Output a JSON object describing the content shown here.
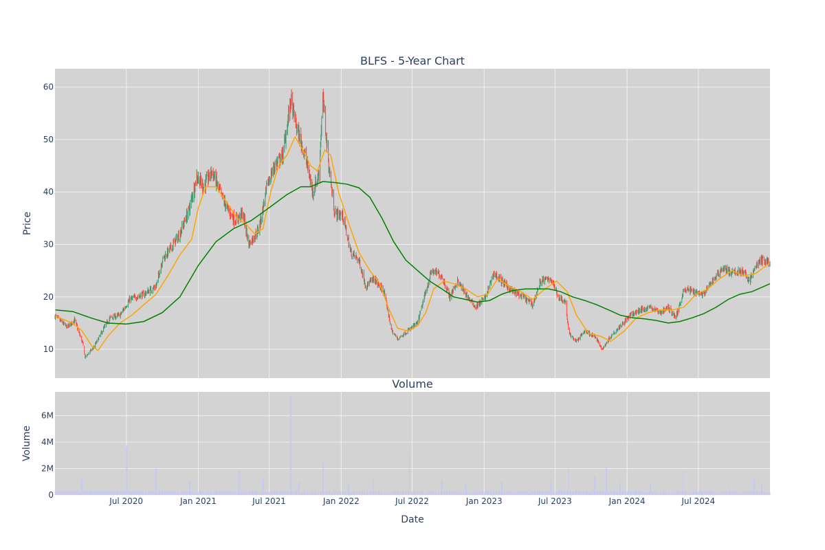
{
  "colors": {
    "plot_bg": "#d3d3d3",
    "grid": "#f0f0f0",
    "increasing": "#3d9970",
    "decreasing": "#ff4136",
    "ma_short": "#ffa500",
    "ma_long": "#008000",
    "volume": "#c8c8f0",
    "text": "#2a3f5f"
  },
  "chart_data": [
    {
      "type": "candlestick",
      "title": "BLFS - 5-Year Chart",
      "xlabel": "",
      "ylabel": "Price",
      "xlim": [
        "2020-01-01",
        "2024-12-31"
      ],
      "ylim": [
        4.5,
        63.5
      ],
      "grid": true,
      "yticks": [
        10,
        20,
        30,
        40,
        50,
        60
      ],
      "xgrid_dates": [
        "2020-07-01",
        "2021-01-01",
        "2021-07-01",
        "2022-01-01",
        "2022-07-01",
        "2023-01-01",
        "2023-07-01",
        "2024-01-01",
        "2024-07-01"
      ],
      "close_path": [
        [
          "2020-01-02",
          16.3
        ],
        [
          "2020-02-01",
          14.2
        ],
        [
          "2020-02-20",
          15.6
        ],
        [
          "2020-03-12",
          11.0
        ],
        [
          "2020-03-18",
          8.5
        ],
        [
          "2020-04-10",
          10.5
        ],
        [
          "2020-05-01",
          13.5
        ],
        [
          "2020-05-20",
          16.0
        ],
        [
          "2020-06-15",
          16.5
        ],
        [
          "2020-07-10",
          19.5
        ],
        [
          "2020-08-15",
          20.5
        ],
        [
          "2020-09-15",
          22.0
        ],
        [
          "2020-10-01",
          27.0
        ],
        [
          "2020-10-20",
          29.0
        ],
        [
          "2020-11-15",
          32.0
        ],
        [
          "2020-12-10",
          37.0
        ],
        [
          "2020-12-28",
          43.0
        ],
        [
          "2021-01-15",
          41.0
        ],
        [
          "2021-02-05",
          44.0
        ],
        [
          "2021-02-25",
          40.0
        ],
        [
          "2021-03-15",
          37.0
        ],
        [
          "2021-04-05",
          34.5
        ],
        [
          "2021-04-25",
          36.0
        ],
        [
          "2021-05-10",
          30.0
        ],
        [
          "2021-06-05",
          33.0
        ],
        [
          "2021-06-25",
          41.0
        ],
        [
          "2021-07-15",
          45.0
        ],
        [
          "2021-08-05",
          47.0
        ],
        [
          "2021-08-25",
          57.5
        ],
        [
          "2021-09-10",
          52.0
        ],
        [
          "2021-10-01",
          47.0
        ],
        [
          "2021-10-20",
          40.0
        ],
        [
          "2021-11-05",
          43.5
        ],
        [
          "2021-11-15",
          58.0
        ],
        [
          "2021-11-30",
          45.0
        ],
        [
          "2021-12-15",
          36.0
        ],
        [
          "2022-01-05",
          35.5
        ],
        [
          "2022-01-25",
          28.5
        ],
        [
          "2022-02-15",
          27.0
        ],
        [
          "2022-03-05",
          22.0
        ],
        [
          "2022-03-25",
          23.5
        ],
        [
          "2022-04-20",
          21.0
        ],
        [
          "2022-05-10",
          13.5
        ],
        [
          "2022-05-25",
          12.0
        ],
        [
          "2022-06-20",
          13.5
        ],
        [
          "2022-07-15",
          15.0
        ],
        [
          "2022-08-05",
          21.0
        ],
        [
          "2022-08-20",
          25.0
        ],
        [
          "2022-09-15",
          24.0
        ],
        [
          "2022-10-05",
          20.0
        ],
        [
          "2022-10-25",
          23.0
        ],
        [
          "2022-11-15",
          20.5
        ],
        [
          "2022-12-10",
          18.0
        ],
        [
          "2023-01-05",
          20.0
        ],
        [
          "2023-01-25",
          24.5
        ],
        [
          "2023-02-15",
          23.0
        ],
        [
          "2023-03-15",
          21.0
        ],
        [
          "2023-04-10",
          20.0
        ],
        [
          "2023-05-05",
          18.5
        ],
        [
          "2023-05-25",
          23.0
        ],
        [
          "2023-06-20",
          23.5
        ],
        [
          "2023-07-10",
          20.0
        ],
        [
          "2023-07-28",
          19.0
        ],
        [
          "2023-08-05",
          13.0
        ],
        [
          "2023-08-25",
          11.5
        ],
        [
          "2023-09-15",
          13.5
        ],
        [
          "2023-10-10",
          12.5
        ],
        [
          "2023-10-30",
          10.0
        ],
        [
          "2023-11-20",
          12.5
        ],
        [
          "2023-12-15",
          14.5
        ],
        [
          "2024-01-10",
          16.5
        ],
        [
          "2024-02-05",
          17.5
        ],
        [
          "2024-03-01",
          18.0
        ],
        [
          "2024-03-25",
          17.0
        ],
        [
          "2024-04-15",
          18.0
        ],
        [
          "2024-05-05",
          16.0
        ],
        [
          "2024-05-25",
          21.5
        ],
        [
          "2024-06-20",
          21.0
        ],
        [
          "2024-07-15",
          20.5
        ],
        [
          "2024-08-10",
          23.5
        ],
        [
          "2024-09-01",
          25.5
        ],
        [
          "2024-09-25",
          24.5
        ],
        [
          "2024-10-20",
          25.0
        ],
        [
          "2024-11-10",
          23.0
        ],
        [
          "2024-11-25",
          26.0
        ],
        [
          "2024-12-10",
          27.0
        ],
        [
          "2024-12-31",
          26.5
        ]
      ],
      "series": [
        {
          "type": "line",
          "color": "#ffa500",
          "points": [
            [
              "2020-01-02",
              16.3
            ],
            [
              "2020-02-15",
              15.0
            ],
            [
              "2020-03-10",
              13.5
            ],
            [
              "2020-04-05",
              10.5
            ],
            [
              "2020-04-20",
              9.8
            ],
            [
              "2020-05-15",
              12.5
            ],
            [
              "2020-06-15",
              15.0
            ],
            [
              "2020-07-15",
              16.5
            ],
            [
              "2020-08-15",
              18.5
            ],
            [
              "2020-09-15",
              20.5
            ],
            [
              "2020-10-15",
              24.0
            ],
            [
              "2020-11-15",
              28.0
            ],
            [
              "2020-12-15",
              31.0
            ],
            [
              "2021-01-01",
              37.0
            ],
            [
              "2021-01-20",
              41.0
            ],
            [
              "2021-02-15",
              41.0
            ],
            [
              "2021-03-15",
              38.0
            ],
            [
              "2021-04-10",
              35.0
            ],
            [
              "2021-05-01",
              34.0
            ],
            [
              "2021-05-25",
              32.0
            ],
            [
              "2021-06-15",
              33.0
            ],
            [
              "2021-07-05",
              40.0
            ],
            [
              "2021-07-25",
              45.0
            ],
            [
              "2021-08-15",
              47.0
            ],
            [
              "2021-09-05",
              50.5
            ],
            [
              "2021-09-25",
              48.0
            ],
            [
              "2021-10-15",
              45.0
            ],
            [
              "2021-11-01",
              44.0
            ],
            [
              "2021-11-20",
              48.0
            ],
            [
              "2021-12-05",
              47.0
            ],
            [
              "2021-12-25",
              40.0
            ],
            [
              "2022-01-20",
              34.0
            ],
            [
              "2022-02-15",
              28.5
            ],
            [
              "2022-03-15",
              25.0
            ],
            [
              "2022-04-10",
              22.5
            ],
            [
              "2022-05-01",
              18.0
            ],
            [
              "2022-05-25",
              14.0
            ],
            [
              "2022-06-20",
              13.5
            ],
            [
              "2022-07-15",
              14.5
            ],
            [
              "2022-08-05",
              17.0
            ],
            [
              "2022-08-25",
              21.5
            ],
            [
              "2022-09-20",
              23.0
            ],
            [
              "2022-10-15",
              22.5
            ],
            [
              "2022-11-15",
              21.5
            ],
            [
              "2022-12-15",
              20.0
            ],
            [
              "2023-01-10",
              20.5
            ],
            [
              "2023-02-05",
              23.5
            ],
            [
              "2023-03-05",
              22.0
            ],
            [
              "2023-04-05",
              21.0
            ],
            [
              "2023-05-05",
              19.5
            ],
            [
              "2023-06-05",
              21.5
            ],
            [
              "2023-07-05",
              23.0
            ],
            [
              "2023-08-01",
              21.0
            ],
            [
              "2023-08-25",
              16.5
            ],
            [
              "2023-09-25",
              13.0
            ],
            [
              "2023-10-25",
              12.5
            ],
            [
              "2023-11-20",
              11.5
            ],
            [
              "2023-12-25",
              13.5
            ],
            [
              "2024-01-25",
              16.0
            ],
            [
              "2024-02-25",
              17.0
            ],
            [
              "2024-03-25",
              17.5
            ],
            [
              "2024-04-25",
              17.5
            ],
            [
              "2024-05-25",
              18.0
            ],
            [
              "2024-06-25",
              20.5
            ],
            [
              "2024-07-25",
              21.5
            ],
            [
              "2024-08-25",
              23.5
            ],
            [
              "2024-09-25",
              25.0
            ],
            [
              "2024-10-25",
              24.0
            ],
            [
              "2024-11-25",
              24.5
            ],
            [
              "2024-12-31",
              26.5
            ]
          ]
        },
        {
          "type": "line",
          "color": "#008000",
          "points": [
            [
              "2020-01-02",
              17.5
            ],
            [
              "2020-02-15",
              17.2
            ],
            [
              "2020-04-01",
              16.0
            ],
            [
              "2020-05-15",
              15.0
            ],
            [
              "2020-07-01",
              14.8
            ],
            [
              "2020-08-15",
              15.3
            ],
            [
              "2020-10-01",
              17.0
            ],
            [
              "2020-11-15",
              20.0
            ],
            [
              "2021-01-01",
              26.0
            ],
            [
              "2021-02-15",
              30.5
            ],
            [
              "2021-04-01",
              33.0
            ],
            [
              "2021-05-15",
              34.5
            ],
            [
              "2021-07-01",
              37.0
            ],
            [
              "2021-08-15",
              39.5
            ],
            [
              "2021-09-20",
              41.0
            ],
            [
              "2021-10-15",
              41.0
            ],
            [
              "2021-11-15",
              42.0
            ],
            [
              "2021-12-15",
              41.8
            ],
            [
              "2022-01-15",
              41.5
            ],
            [
              "2022-02-15",
              40.8
            ],
            [
              "2022-03-15",
              39.0
            ],
            [
              "2022-04-15",
              35.0
            ],
            [
              "2022-05-15",
              30.5
            ],
            [
              "2022-06-15",
              27.0
            ],
            [
              "2022-07-15",
              25.0
            ],
            [
              "2022-08-15",
              23.0
            ],
            [
              "2022-09-15",
              21.5
            ],
            [
              "2022-10-15",
              20.0
            ],
            [
              "2022-11-15",
              19.5
            ],
            [
              "2022-12-15",
              19.0
            ],
            [
              "2023-01-15",
              19.3
            ],
            [
              "2023-02-15",
              20.5
            ],
            [
              "2023-03-15",
              21.2
            ],
            [
              "2023-04-15",
              21.5
            ],
            [
              "2023-05-15",
              21.5
            ],
            [
              "2023-06-15",
              21.5
            ],
            [
              "2023-07-15",
              21.0
            ],
            [
              "2023-08-15",
              20.0
            ],
            [
              "2023-09-15",
              19.3
            ],
            [
              "2023-10-15",
              18.5
            ],
            [
              "2023-11-15",
              17.5
            ],
            [
              "2023-12-15",
              16.5
            ],
            [
              "2024-01-15",
              16.0
            ],
            [
              "2024-02-15",
              15.8
            ],
            [
              "2024-03-15",
              15.5
            ],
            [
              "2024-04-15",
              15.0
            ],
            [
              "2024-05-15",
              15.3
            ],
            [
              "2024-06-15",
              16.0
            ],
            [
              "2024-07-15",
              16.8
            ],
            [
              "2024-08-15",
              18.0
            ],
            [
              "2024-09-15",
              19.5
            ],
            [
              "2024-10-15",
              20.5
            ],
            [
              "2024-11-15",
              21.0
            ],
            [
              "2024-12-31",
              22.5
            ]
          ]
        }
      ]
    },
    {
      "type": "bar",
      "title": "Volume",
      "xlabel": "Date",
      "ylabel": "Volume",
      "ylim": [
        0,
        7800000
      ],
      "yticks": [
        0,
        2000000,
        4000000,
        6000000
      ],
      "ytick_labels": [
        "0",
        "2M",
        "4M",
        "6M"
      ],
      "xticks": [
        "2020-07-01",
        "2021-01-01",
        "2021-07-01",
        "2022-01-01",
        "2022-07-01",
        "2023-01-01",
        "2023-07-01",
        "2024-01-01",
        "2024-07-01"
      ],
      "xtick_labels": [
        "Jul 2020",
        "Jan 2021",
        "Jul 2021",
        "Jan 2022",
        "Jul 2022",
        "Jan 2023",
        "Jul 2023",
        "Jan 2024",
        "Jul 2024"
      ],
      "baseline": 250000,
      "spikes": [
        [
          "2020-03-10",
          1200000
        ],
        [
          "2020-07-02",
          3700000
        ],
        [
          "2020-09-15",
          2000000
        ],
        [
          "2020-12-10",
          1100000
        ],
        [
          "2021-04-15",
          1800000
        ],
        [
          "2021-06-15",
          1200000
        ],
        [
          "2021-08-25",
          7500000
        ],
        [
          "2021-09-15",
          1000000
        ],
        [
          "2021-11-15",
          2400000
        ],
        [
          "2022-01-20",
          900000
        ],
        [
          "2022-03-25",
          1300000
        ],
        [
          "2022-06-25",
          3200000
        ],
        [
          "2022-09-15",
          1100000
        ],
        [
          "2022-11-15",
          800000
        ],
        [
          "2023-02-15",
          1000000
        ],
        [
          "2023-06-20",
          900000
        ],
        [
          "2023-08-05",
          2000000
        ],
        [
          "2023-10-10",
          1400000
        ],
        [
          "2023-11-10",
          2100000
        ],
        [
          "2023-12-15",
          1100000
        ],
        [
          "2024-03-01",
          1000000
        ],
        [
          "2024-05-25",
          1700000
        ],
        [
          "2024-09-15",
          800000
        ],
        [
          "2024-11-20",
          1200000
        ],
        [
          "2024-12-10",
          900000
        ]
      ]
    }
  ]
}
